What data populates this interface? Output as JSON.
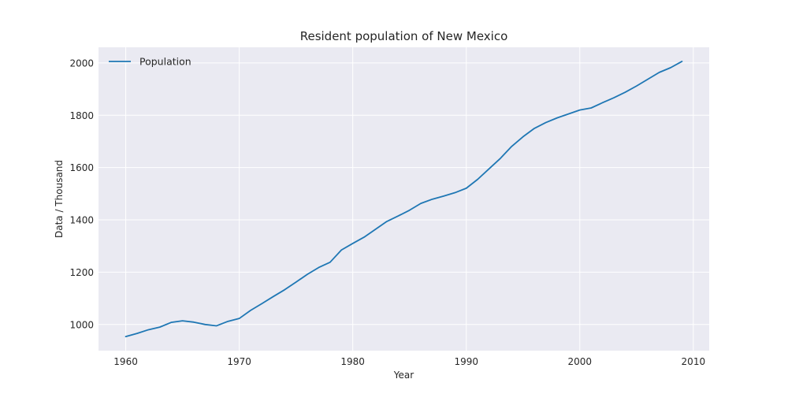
{
  "chart_data": {
    "type": "line",
    "title": "Resident population of New Mexico",
    "xlabel": "Year",
    "ylabel": "Data / Thousand",
    "xlim": [
      1957.6,
      2011.4
    ],
    "ylim": [
      900,
      2060
    ],
    "xticks": [
      1960,
      1970,
      1980,
      1990,
      2000,
      2010
    ],
    "yticks": [
      1000,
      1200,
      1400,
      1600,
      1800,
      2000
    ],
    "grid": true,
    "legend_position": "top-left",
    "series": [
      {
        "name": "Population",
        "color": "#1f77b4",
        "x": [
          1960,
          1961,
          1962,
          1963,
          1964,
          1965,
          1966,
          1967,
          1968,
          1969,
          1970,
          1971,
          1972,
          1973,
          1974,
          1975,
          1976,
          1977,
          1978,
          1979,
          1980,
          1981,
          1982,
          1983,
          1984,
          1985,
          1986,
          1987,
          1988,
          1989,
          1990,
          1991,
          1992,
          1993,
          1994,
          1995,
          1996,
          1997,
          1998,
          1999,
          2000,
          2001,
          2002,
          2003,
          2004,
          2005,
          2006,
          2007,
          2008,
          2009
        ],
        "y": [
          954,
          966,
          980,
          990,
          1008,
          1014,
          1009,
          1000,
          995,
          1012,
          1023,
          1054,
          1080,
          1107,
          1133,
          1162,
          1192,
          1218,
          1238,
          1285,
          1310,
          1334,
          1364,
          1394,
          1415,
          1437,
          1463,
          1479,
          1491,
          1504,
          1521,
          1555,
          1595,
          1635,
          1681,
          1718,
          1750,
          1772,
          1790,
          1805,
          1820,
          1828,
          1848,
          1867,
          1888,
          1912,
          1938,
          1964,
          1982,
          2006
        ]
      }
    ]
  }
}
